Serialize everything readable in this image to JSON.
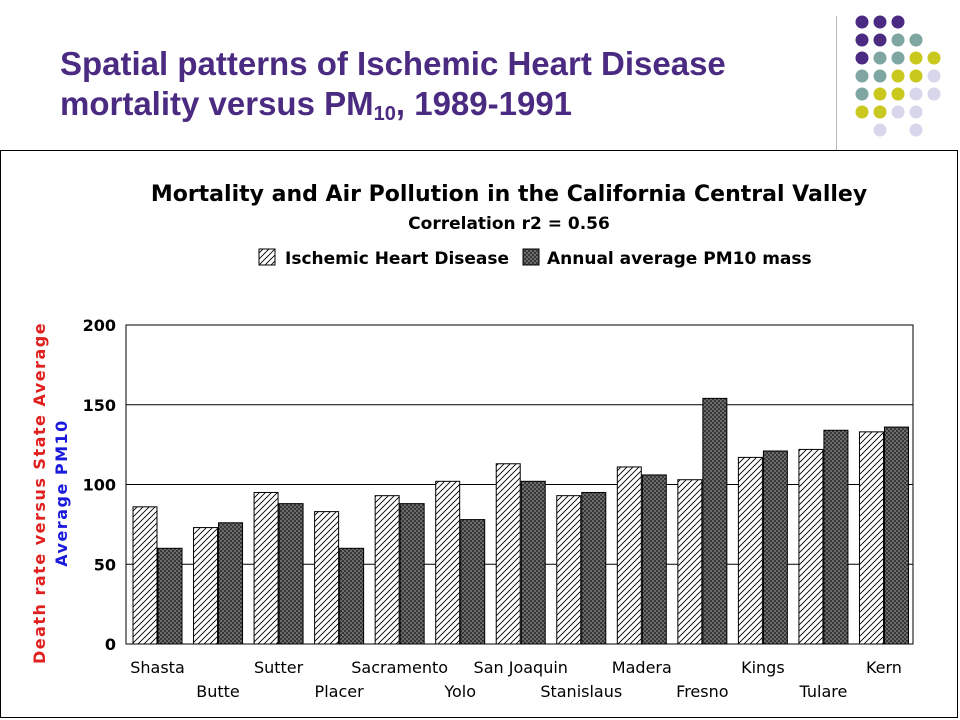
{
  "slide": {
    "title_line1": "Spatial patterns of Ischemic Heart Disease",
    "title_line2_prefix": "mortality versus PM",
    "title_line2_sub": "10",
    "title_line2_suffix": ", 1989-1991",
    "colors": {
      "title": "#4b2a82",
      "dot_purple": "#4b2a82",
      "dot_teal": "#7fa6a2",
      "dot_yellow": "#c8c81e",
      "dot_lavender": "#d7d6ea"
    }
  },
  "chart_data": {
    "type": "bar",
    "title": "Mortality and Air Pollution in the California Central Valley",
    "subtitle": "Correlation r2 = 0.56",
    "ylabel_line1": "Death rate versus State Average",
    "ylabel_line2": "Average PM10",
    "ylabel_colors": {
      "line1": "#e0201e",
      "line2": "#1a1adc"
    },
    "ylim": [
      0,
      200
    ],
    "yticks": [
      0,
      50,
      100,
      150,
      200
    ],
    "grid": true,
    "legend_position": "top",
    "categories": [
      "Shasta",
      "Butte",
      "Sutter",
      "Placer",
      "Sacramento",
      "Yolo",
      "San Joaquin",
      "Stanislaus",
      "Madera",
      "Fresno",
      "Kings",
      "Tulare",
      "Kern"
    ],
    "series": [
      {
        "name": "Ischemic Heart Disease",
        "pattern": "diagonal-hatch",
        "values": [
          86,
          73,
          95,
          83,
          93,
          102,
          113,
          93,
          111,
          103,
          117,
          122,
          133
        ]
      },
      {
        "name": "Annual average PM10 mass",
        "pattern": "dark-crosshatch",
        "values": [
          60,
          76,
          88,
          60,
          88,
          78,
          102,
          95,
          106,
          154,
          121,
          134,
          136
        ]
      }
    ]
  }
}
